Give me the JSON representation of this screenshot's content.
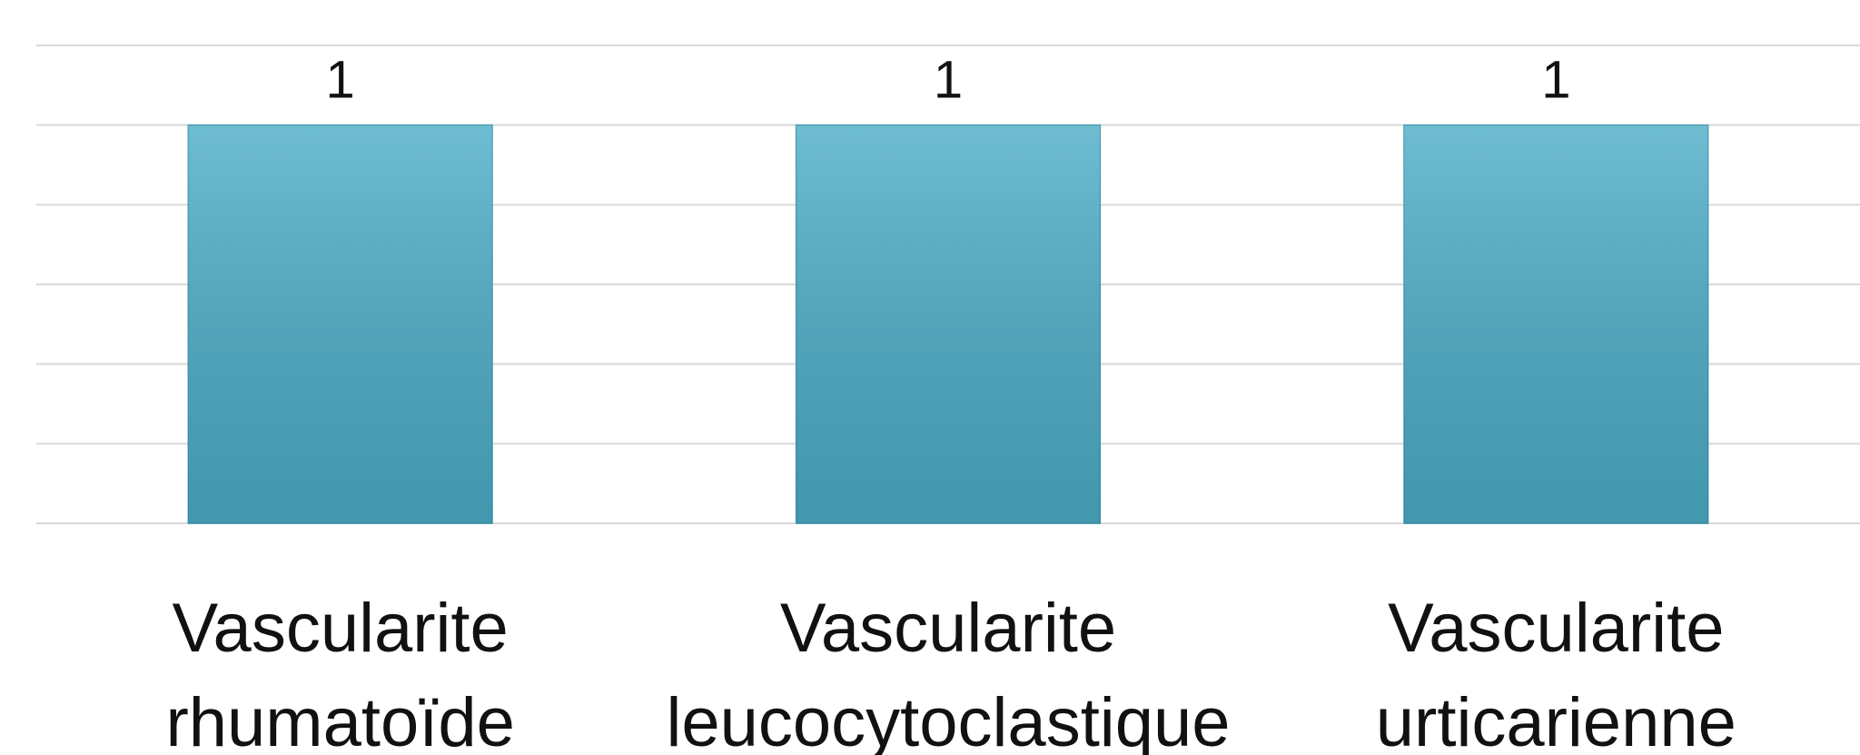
{
  "chart_data": {
    "type": "bar",
    "categories": [
      "Vascularite rhumatoïde",
      "Vascularite leucocytoclastique",
      "Vascularite urticarienne"
    ],
    "values": [
      1,
      1,
      1
    ],
    "color": "#4bacc6",
    "ylim": [
      0,
      1.2
    ],
    "yticks": [
      0,
      0.2,
      0.4,
      0.6,
      0.8,
      1,
      1.2
    ],
    "grid": true
  }
}
